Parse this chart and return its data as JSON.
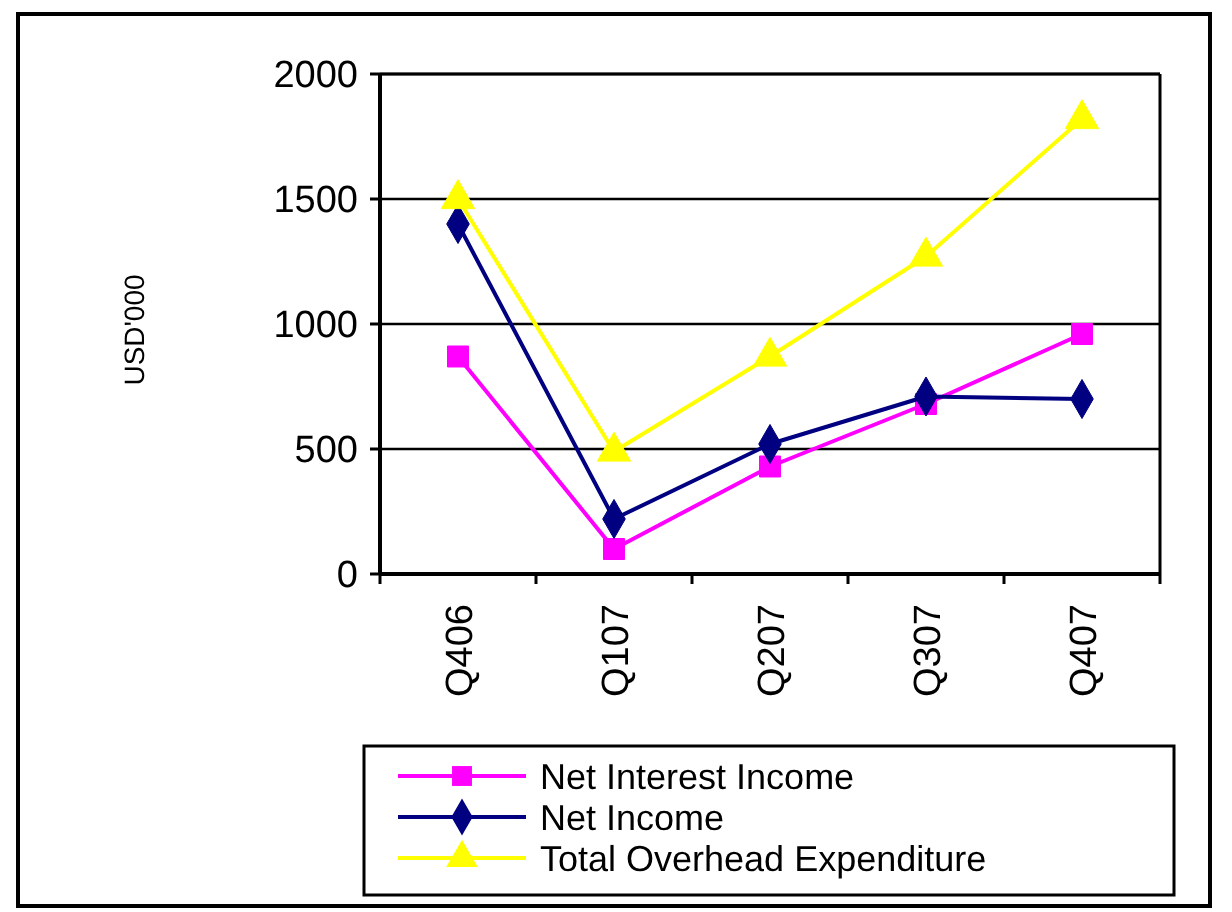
{
  "chart_data": {
    "type": "line",
    "ylabel": "USD'000",
    "categories": [
      "Q406",
      "Q107",
      "Q207",
      "Q307",
      "Q407"
    ],
    "series": [
      {
        "name": "Net Interest Income",
        "color": "#ff00ff",
        "marker": "square",
        "values": [
          870,
          100,
          430,
          680,
          960
        ]
      },
      {
        "name": "Net Income",
        "color": "#000080",
        "marker": "diamond",
        "values": [
          1400,
          220,
          520,
          710,
          700
        ]
      },
      {
        "name": "Total Overhead Expenditure",
        "color": "#ffff00",
        "marker": "triangle",
        "values": [
          1500,
          490,
          870,
          1270,
          1820
        ]
      }
    ],
    "ylim": [
      0,
      2000
    ],
    "yticks": [
      0,
      500,
      1000,
      1500,
      2000
    ],
    "grid": "y",
    "legend": "bottom"
  }
}
